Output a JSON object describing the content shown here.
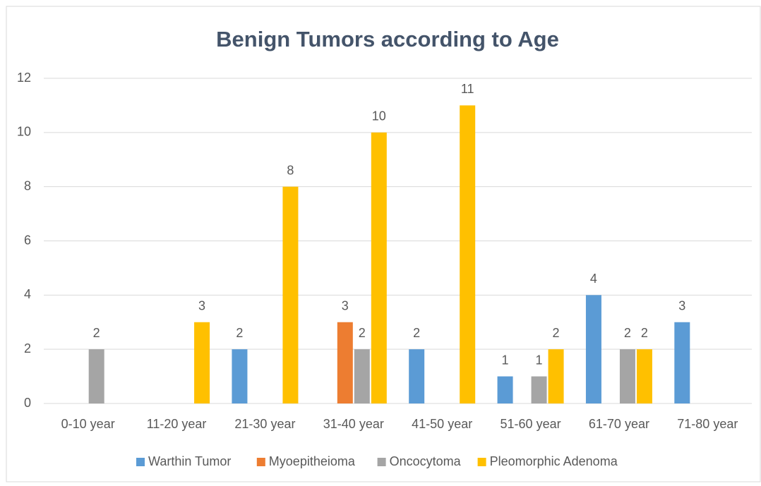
{
  "chart_data": {
    "type": "bar",
    "title": "Benign Tumors according to Age",
    "categories": [
      "0-10 year",
      "11-20 year",
      "21-30 year",
      "31-40 year",
      "41-50 year",
      "51-60 year",
      "61-70 year",
      "71-80 year"
    ],
    "series": [
      {
        "name": "Warthin Tumor",
        "color": "#5b9bd5",
        "values": [
          null,
          null,
          2,
          null,
          2,
          1,
          4,
          3
        ]
      },
      {
        "name": "Myoepitheioma",
        "color": "#ed7d31",
        "values": [
          null,
          null,
          null,
          3,
          null,
          null,
          null,
          null
        ]
      },
      {
        "name": "Oncocytoma",
        "color": "#a5a5a5",
        "values": [
          2,
          null,
          null,
          2,
          null,
          1,
          2,
          null
        ]
      },
      {
        "name": "Pleomorphic Adenoma",
        "color": "#ffc000",
        "values": [
          null,
          3,
          8,
          10,
          11,
          2,
          2,
          null
        ]
      }
    ],
    "ylim": [
      0,
      12
    ],
    "yticks": [
      0,
      2,
      4,
      6,
      8,
      10,
      12
    ],
    "grid": true,
    "legend": "bottom"
  }
}
